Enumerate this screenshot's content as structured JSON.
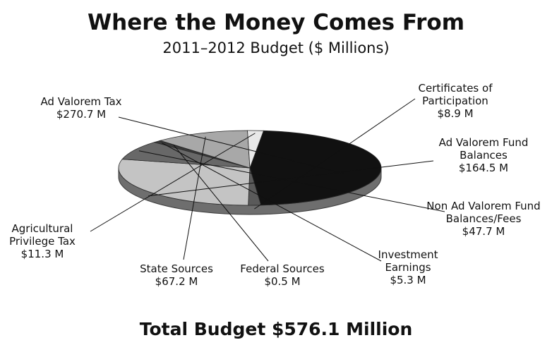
{
  "title": "Where the Money Comes From",
  "subtitle": "2011–2012 Budget ($ Millions)",
  "total": "Total Budget $576.1 Million",
  "chart_data": {
    "type": "pie",
    "title": "Where the Money Comes From",
    "subtitle": "2011–2012 Budget ($ Millions)",
    "unit": "$ Millions",
    "slices": [
      {
        "label_lines": [
          "Ad Valorem Tax"
        ],
        "value": 270.7,
        "value_label": "$270.7 M",
        "color": "#111111"
      },
      {
        "label_lines": [
          "Certificates of",
          "Participation"
        ],
        "value": 8.9,
        "value_label": "$8.9 M",
        "color": "#5a5a5a"
      },
      {
        "label_lines": [
          "Ad Valorem Fund",
          "Balances"
        ],
        "value": 164.5,
        "value_label": "$164.5 M",
        "color": "#c4c4c4"
      },
      {
        "label_lines": [
          "Non Ad Valorem Fund",
          "Balances/Fees"
        ],
        "value": 47.7,
        "value_label": "$47.7 M",
        "color": "#686868"
      },
      {
        "label_lines": [
          "Investment",
          "Earnings"
        ],
        "value": 5.3,
        "value_label": "$5.3 M",
        "color": "#3a3a3a"
      },
      {
        "label_lines": [
          "Federal Sources"
        ],
        "value": 0.5,
        "value_label": "$0.5 M",
        "color": "#9a9a9a"
      },
      {
        "label_lines": [
          "State Sources"
        ],
        "value": 67.2,
        "value_label": "$67.2 M",
        "color": "#a8a8a8"
      },
      {
        "label_lines": [
          "Agricultural",
          "Privilege Tax"
        ],
        "value": 11.3,
        "value_label": "$11.3 M",
        "color": "#e8e8e8"
      }
    ]
  }
}
